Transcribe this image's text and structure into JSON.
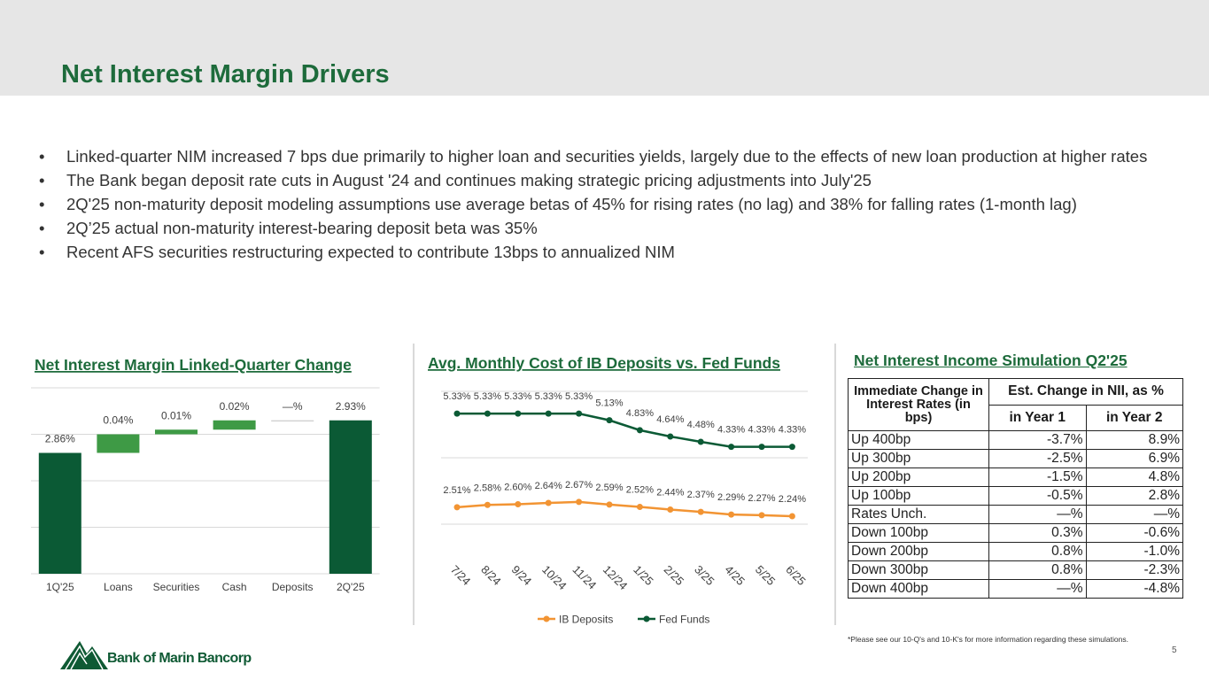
{
  "title": "Net Interest Margin Drivers",
  "bullets": [
    "Linked-quarter NIM increased 7 bps due primarily to higher loan and securities yields, largely due to the effects of new loan production at higher rates",
    "The Bank began deposit rate cuts in August '24 and continues making strategic pricing adjustments into July'25",
    "2Q'25 non-maturity deposit modeling assumptions use average betas of 45% for rising rates (no lag) and 38% for falling rates (1-month lag)",
    "2Q’25 actual non-maturity interest-bearing deposit beta was 35%",
    "Recent AFS securities restructuring expected to contribute 13bps to annualized NIM"
  ],
  "chart_data": [
    {
      "type": "waterfall",
      "title": "Net Interest Margin Linked-Quarter Change",
      "categories": [
        "1Q'25",
        "Loans",
        "Securities",
        "Cash",
        "Deposits",
        "2Q'25"
      ],
      "values": [
        2.86,
        0.04,
        0.01,
        0.02,
        0,
        2.93
      ],
      "value_labels": [
        "2.86%",
        "0.04%",
        "0.01%",
        "0.02%",
        "—%",
        "2.93%"
      ],
      "measure": [
        "absolute",
        "relative",
        "relative",
        "relative",
        "relative",
        "absolute"
      ],
      "color_total": "#0b5a35",
      "color_increase": "#3e9a45",
      "ylim": [
        2.6,
        3.0
      ],
      "yticks": [
        2.6,
        2.7,
        2.8,
        2.9,
        3.0
      ],
      "grid": true
    },
    {
      "type": "line",
      "title": "Avg. Monthly Cost of IB Deposits vs. Fed Funds",
      "categories": [
        "7/24",
        "8/24",
        "9/24",
        "10/24",
        "11/24",
        "12/24",
        "1/25",
        "2/25",
        "3/25",
        "4/25",
        "5/25",
        "6/25"
      ],
      "series": [
        {
          "name": "IB Deposits",
          "color": "#f29433",
          "values": [
            2.51,
            2.58,
            2.6,
            2.64,
            2.67,
            2.59,
            2.52,
            2.44,
            2.37,
            2.29,
            2.27,
            2.24
          ],
          "value_labels": [
            "2.51%",
            "2.58%",
            "2.60%",
            "2.64%",
            "2.67%",
            "2.59%",
            "2.52%",
            "2.44%",
            "2.37%",
            "2.29%",
            "2.27%",
            "2.24%"
          ]
        },
        {
          "name": "Fed Funds",
          "color": "#0b5a35",
          "values": [
            5.33,
            5.33,
            5.33,
            5.33,
            5.33,
            5.13,
            4.83,
            4.64,
            4.48,
            4.33,
            4.33,
            4.33
          ],
          "value_labels": [
            "5.33%",
            "5.33%",
            "5.33%",
            "5.33%",
            "5.33%",
            "5.13%",
            "4.83%",
            "4.64%",
            "4.48%",
            "4.33%",
            "4.33%",
            "4.33%"
          ]
        }
      ],
      "ylim": [
        2,
        6
      ],
      "yticks": [
        2,
        4,
        6
      ],
      "grid": true,
      "legend": "bottom"
    }
  ],
  "table": {
    "title": "Net Interest Income Simulation Q2'25",
    "header": {
      "row_label": "Immediate Change in Interest Rates (in bps)",
      "group": "Est. Change in NII, as %",
      "columns": [
        "in Year 1",
        "in Year 2"
      ]
    },
    "rows": [
      [
        "Up 400bp",
        "-3.7%",
        "8.9%"
      ],
      [
        "Up 300bp",
        "-2.5%",
        "6.9%"
      ],
      [
        "Up 200bp",
        "-1.5%",
        "4.8%"
      ],
      [
        "Up 100bp",
        "-0.5%",
        "2.8%"
      ],
      [
        "Rates Unch.",
        "—%",
        "—%"
      ],
      [
        "Down 100bp",
        "0.3%",
        "-0.6%"
      ],
      [
        "Down 200bp",
        "0.8%",
        "-1.0%"
      ],
      [
        "Down 300bp",
        "0.8%",
        "-2.3%"
      ],
      [
        "Down 400bp",
        "—%",
        "-4.8%"
      ]
    ]
  },
  "footnote": "*Please see our 10-Q's and 10-K's for more information regarding these simulations.",
  "page_number": "5",
  "logo": "Bank of Marin Bancorp"
}
